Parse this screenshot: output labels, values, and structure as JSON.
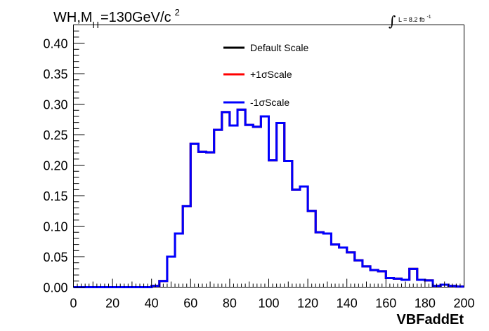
{
  "title": {
    "prefix": "WH,M",
    "subscript": "H",
    "mass": "=130GeV/c",
    "superscript": "2"
  },
  "luminosity": {
    "integral_symbol": "∫",
    "text": "L = 8.2 fb",
    "superscript": "-1"
  },
  "chart_data": {
    "type": "step",
    "xlabel": "VBFaddEt",
    "ylabel": "",
    "xlim": [
      0,
      200
    ],
    "ylim": [
      0,
      0.43
    ],
    "bin_width": 4,
    "x_ticks": [
      0,
      20,
      40,
      60,
      80,
      100,
      120,
      140,
      160,
      180,
      200
    ],
    "x_tick_labels": [
      "0",
      "20",
      "40",
      "60",
      "80",
      "100",
      "120",
      "140",
      "160",
      "180",
      "200"
    ],
    "y_ticks": [
      0,
      0.05,
      0.1,
      0.15,
      0.2,
      0.25,
      0.3,
      0.35,
      0.4
    ],
    "y_tick_labels": [
      "0.00",
      "0.05",
      "0.10",
      "0.15",
      "0.20",
      "0.25",
      "0.30",
      "0.35",
      "0.40"
    ],
    "legend_position": "top-center",
    "series": [
      {
        "name": "Default Scale",
        "color": "#000000",
        "values": [
          0,
          0,
          0,
          0,
          0,
          0,
          0,
          0,
          0,
          0,
          0.002,
          0.01,
          0.05,
          0.088,
          0.133,
          0.235,
          0.222,
          0.221,
          0.258,
          0.287,
          0.265,
          0.291,
          0.266,
          0.263,
          0.28,
          0.208,
          0.269,
          0.207,
          0.16,
          0.165,
          0.125,
          0.09,
          0.088,
          0.07,
          0.065,
          0.057,
          0.044,
          0.034,
          0.028,
          0.026,
          0.015,
          0.014,
          0.012,
          0.03,
          0.012,
          0.011,
          0.002,
          0.004,
          0.002,
          0.001
        ]
      },
      {
        "name": "+1σScale",
        "color": "#ff0000",
        "values": [
          0,
          0,
          0,
          0,
          0,
          0,
          0,
          0,
          0,
          0,
          0.002,
          0.01,
          0.05,
          0.088,
          0.133,
          0.235,
          0.222,
          0.221,
          0.258,
          0.287,
          0.265,
          0.291,
          0.266,
          0.263,
          0.28,
          0.208,
          0.269,
          0.207,
          0.16,
          0.165,
          0.125,
          0.09,
          0.088,
          0.07,
          0.065,
          0.057,
          0.044,
          0.034,
          0.028,
          0.026,
          0.015,
          0.014,
          0.012,
          0.03,
          0.012,
          0.011,
          0.002,
          0.004,
          0.002,
          0.001
        ]
      },
      {
        "name": "-1σScale",
        "color": "#0000ff",
        "values": [
          0,
          0,
          0,
          0,
          0,
          0,
          0,
          0,
          0,
          0,
          0.002,
          0.01,
          0.05,
          0.088,
          0.133,
          0.235,
          0.222,
          0.221,
          0.258,
          0.287,
          0.265,
          0.291,
          0.266,
          0.263,
          0.28,
          0.208,
          0.269,
          0.207,
          0.16,
          0.165,
          0.125,
          0.09,
          0.088,
          0.07,
          0.065,
          0.057,
          0.044,
          0.034,
          0.028,
          0.026,
          0.015,
          0.014,
          0.012,
          0.03,
          0.012,
          0.011,
          0.002,
          0.004,
          0.002,
          0.001
        ]
      }
    ]
  }
}
